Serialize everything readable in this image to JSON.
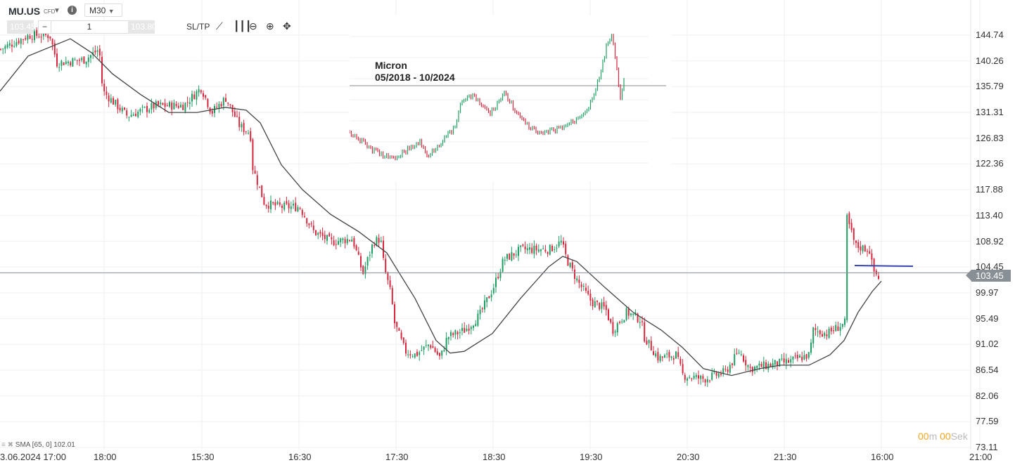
{
  "header": {
    "symbol": "MU.US",
    "type": "CFD",
    "timeframe": "M30",
    "bid": "103.45",
    "ask": "103.80",
    "quantity": "1",
    "qty_minus": "−",
    "qty_plus": "+",
    "sltp": "SL/TP"
  },
  "indicator": {
    "label": "SMA [65, 0] 102.01"
  },
  "timer": {
    "min": "00",
    "min_unit": "m ",
    "sec": "00",
    "sec_unit": "Sek"
  },
  "colors": {
    "up": "#1e9e62",
    "down": "#d7263d",
    "sma": "#444444",
    "level": "#3a46b0",
    "price_line": "#888f95"
  },
  "inset": {
    "title": "Micron",
    "subtitle": "05/2018 - 10/2024"
  },
  "chart_data": {
    "type": "candlestick",
    "y_ticks": [
      "144.74",
      "140.26",
      "135.79",
      "131.31",
      "126.83",
      "122.36",
      "117.88",
      "113.40",
      "108.92",
      "104.45",
      "99.97",
      "95.49",
      "91.02",
      "86.54",
      "82.06",
      "77.59",
      "73.11"
    ],
    "ylim": [
      73.11,
      144.74
    ],
    "x_ticks": [
      "3.06.2024 17:00",
      "18:00",
      "15:30",
      "16:30",
      "17:30",
      "18:30",
      "19:30",
      "20:30",
      "21:30",
      "16:00",
      "21:00"
    ],
    "current_price": "103.45",
    "horizontal_level": 104.71,
    "price_path": [
      [
        0,
        142.3
      ],
      [
        20,
        143.5
      ],
      [
        40,
        144.7
      ],
      [
        70,
        144.7
      ],
      [
        80,
        139.9
      ],
      [
        120,
        140.5
      ],
      [
        140,
        142.3
      ],
      [
        145,
        135.0
      ],
      [
        180,
        130.7
      ],
      [
        220,
        132.5
      ],
      [
        260,
        132.5
      ],
      [
        285,
        135.6
      ],
      [
        300,
        131.3
      ],
      [
        320,
        133.8
      ],
      [
        340,
        128.9
      ],
      [
        355,
        127.7
      ],
      [
        357,
        122.2
      ],
      [
        375,
        115.5
      ],
      [
        400,
        114.9
      ],
      [
        425,
        114.9
      ],
      [
        445,
        110.6
      ],
      [
        470,
        108.8
      ],
      [
        500,
        109.4
      ],
      [
        515,
        103.3
      ],
      [
        530,
        108.8
      ],
      [
        540,
        109.4
      ],
      [
        545,
        104.5
      ],
      [
        555,
        99.6
      ],
      [
        560,
        94.7
      ],
      [
        575,
        89.8
      ],
      [
        590,
        89.2
      ],
      [
        610,
        91.1
      ],
      [
        625,
        88.6
      ],
      [
        635,
        92.3
      ],
      [
        660,
        93.5
      ],
      [
        680,
        95.9
      ],
      [
        700,
        100.8
      ],
      [
        715,
        105.7
      ],
      [
        740,
        107.5
      ],
      [
        780,
        107.5
      ],
      [
        797,
        108.8
      ],
      [
        805,
        105.7
      ],
      [
        820,
        102.0
      ],
      [
        840,
        98.4
      ],
      [
        860,
        97.2
      ],
      [
        870,
        93.5
      ],
      [
        890,
        96.6
      ],
      [
        910,
        95.3
      ],
      [
        915,
        92.3
      ],
      [
        935,
        88.6
      ],
      [
        960,
        89.2
      ],
      [
        970,
        85.6
      ],
      [
        1000,
        85.0
      ],
      [
        1030,
        86.2
      ],
      [
        1050,
        89.8
      ],
      [
        1065,
        86.8
      ],
      [
        1090,
        87.4
      ],
      [
        1120,
        88.0
      ],
      [
        1150,
        89.2
      ],
      [
        1155,
        93.5
      ],
      [
        1175,
        92.9
      ],
      [
        1200,
        94.7
      ],
      [
        1203,
        113.0
      ],
      [
        1215,
        108.1
      ],
      [
        1235,
        107.5
      ],
      [
        1240,
        103.9
      ],
      [
        1250,
        102.4
      ]
    ],
    "sma_path": [
      [
        0,
        135.0
      ],
      [
        40,
        141.1
      ],
      [
        100,
        144.1
      ],
      [
        130,
        141.7
      ],
      [
        160,
        138.0
      ],
      [
        200,
        134.4
      ],
      [
        240,
        131.3
      ],
      [
        280,
        131.3
      ],
      [
        320,
        132.2
      ],
      [
        350,
        131.7
      ],
      [
        370,
        129.5
      ],
      [
        400,
        122.2
      ],
      [
        430,
        117.9
      ],
      [
        470,
        113.6
      ],
      [
        510,
        110.6
      ],
      [
        550,
        106.9
      ],
      [
        590,
        99.0
      ],
      [
        620,
        91.7
      ],
      [
        640,
        89.5
      ],
      [
        660,
        89.8
      ],
      [
        700,
        92.9
      ],
      [
        740,
        99.0
      ],
      [
        780,
        104.5
      ],
      [
        800,
        106.3
      ],
      [
        820,
        105.4
      ],
      [
        860,
        100.9
      ],
      [
        900,
        96.6
      ],
      [
        940,
        93.5
      ],
      [
        970,
        90.5
      ],
      [
        1000,
        86.8
      ],
      [
        1040,
        85.6
      ],
      [
        1080,
        86.8
      ],
      [
        1110,
        87.4
      ],
      [
        1150,
        87.4
      ],
      [
        1180,
        89.2
      ],
      [
        1200,
        91.7
      ],
      [
        1220,
        96.6
      ],
      [
        1240,
        100.2
      ],
      [
        1253,
        102.0
      ]
    ]
  }
}
